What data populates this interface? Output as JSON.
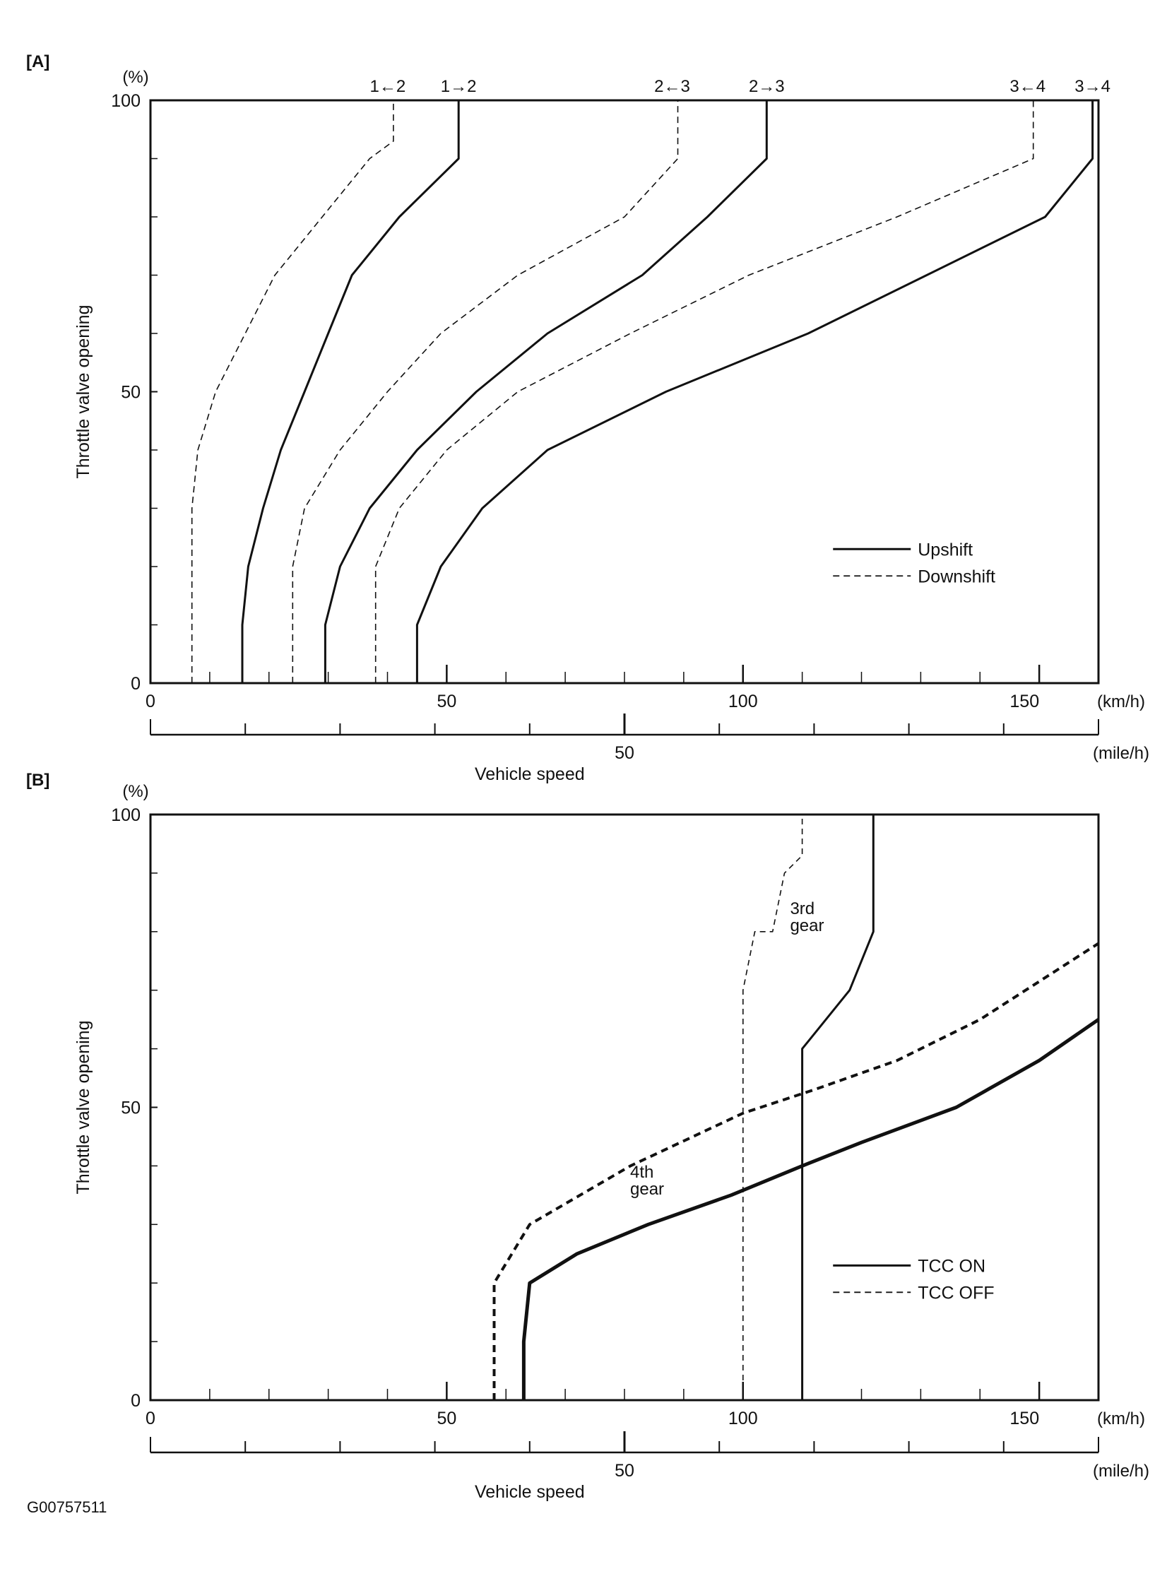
{
  "footer_code": "G00757511",
  "chart_data": [
    {
      "panel": "[A]",
      "type": "line",
      "y_unit": "(%)",
      "ylabel": "Throttle valve opening",
      "xlabel": "Vehicle speed",
      "x_unit": "(km/h)",
      "x2_unit": "(mile/h)",
      "xlim": [
        0,
        160
      ],
      "ylim": [
        0,
        100
      ],
      "x_ticks": [
        0,
        50,
        100,
        150
      ],
      "y_ticks": [
        0,
        50,
        100
      ],
      "x2_ticks": [
        50
      ],
      "x2_limit_mph": 100,
      "legend": [
        {
          "label": "Upshift",
          "style": "solid"
        },
        {
          "label": "Downshift",
          "style": "dashed"
        }
      ],
      "legend_position": "lower-right",
      "series": [
        {
          "label": "1→2",
          "style": "solid",
          "points": [
            [
              15.5,
              0
            ],
            [
              15.5,
              10
            ],
            [
              16.5,
              20
            ],
            [
              19,
              30
            ],
            [
              22,
              40
            ],
            [
              26,
              50
            ],
            [
              30,
              60
            ],
            [
              34,
              70
            ],
            [
              42,
              80
            ],
            [
              52,
              90
            ],
            [
              52,
              100
            ]
          ]
        },
        {
          "label": "1←2",
          "style": "dashed",
          "points": [
            [
              7,
              0
            ],
            [
              7,
              30
            ],
            [
              8,
              40
            ],
            [
              11,
              50
            ],
            [
              16,
              60
            ],
            [
              21,
              70
            ],
            [
              29,
              80
            ],
            [
              37,
              90
            ],
            [
              41,
              93
            ],
            [
              41,
              100
            ]
          ]
        },
        {
          "label": "2→3",
          "style": "solid",
          "points": [
            [
              29.5,
              0
            ],
            [
              29.5,
              10
            ],
            [
              32,
              20
            ],
            [
              37,
              30
            ],
            [
              45,
              40
            ],
            [
              55,
              50
            ],
            [
              67,
              60
            ],
            [
              83,
              70
            ],
            [
              94,
              80
            ],
            [
              104,
              90
            ],
            [
              104,
              100
            ]
          ]
        },
        {
          "label": "2←3",
          "style": "dashed",
          "points": [
            [
              24,
              0
            ],
            [
              24,
              20
            ],
            [
              26,
              30
            ],
            [
              32,
              40
            ],
            [
              40,
              50
            ],
            [
              49,
              60
            ],
            [
              62,
              70
            ],
            [
              80,
              80
            ],
            [
              89,
              90
            ],
            [
              89,
              100
            ]
          ]
        },
        {
          "label": "3→4",
          "style": "solid",
          "points": [
            [
              45,
              0
            ],
            [
              45,
              10
            ],
            [
              49,
              20
            ],
            [
              56,
              30
            ],
            [
              67,
              40
            ],
            [
              87,
              50
            ],
            [
              111,
              60
            ],
            [
              131,
              70
            ],
            [
              151,
              80
            ],
            [
              159,
              90
            ],
            [
              159,
              100
            ]
          ]
        },
        {
          "label": "3←4",
          "style": "dashed",
          "points": [
            [
              38,
              0
            ],
            [
              38,
              20
            ],
            [
              42,
              30
            ],
            [
              50,
              40
            ],
            [
              62,
              50
            ],
            [
              81,
              60
            ],
            [
              101,
              70
            ],
            [
              126,
              80
            ],
            [
              149,
              90
            ],
            [
              149,
              100
            ]
          ]
        }
      ],
      "top_labels": [
        "1←2",
        "1→2",
        "2←3",
        "2→3",
        "3←4",
        "3→4"
      ]
    },
    {
      "panel": "[B]",
      "type": "line",
      "y_unit": "(%)",
      "ylabel": "Throttle valve opening",
      "xlabel": "Vehicle speed",
      "x_unit": "(km/h)",
      "x2_unit": "(mile/h)",
      "xlim": [
        0,
        160
      ],
      "ylim": [
        0,
        100
      ],
      "x_ticks": [
        0,
        50,
        100,
        150
      ],
      "y_ticks": [
        0,
        50,
        100
      ],
      "x2_ticks": [
        50
      ],
      "x2_limit_mph": 100,
      "legend": [
        {
          "label": "TCC ON",
          "style": "solid"
        },
        {
          "label": "TCC OFF",
          "style": "dashed"
        }
      ],
      "legend_position": "lower-right",
      "series": [
        {
          "group": "3rd gear",
          "tcc": "ON",
          "style": "solid",
          "points": [
            [
              110,
              0
            ],
            [
              110,
              60
            ],
            [
              118,
              70
            ],
            [
              122,
              80
            ],
            [
              122,
              100
            ]
          ]
        },
        {
          "group": "3rd gear",
          "tcc": "OFF",
          "style": "dashed-thin",
          "points": [
            [
              100,
              0
            ],
            [
              100,
              70
            ],
            [
              102,
              80
            ],
            [
              105,
              80
            ],
            [
              107,
              90
            ],
            [
              110,
              93
            ],
            [
              110,
              100
            ]
          ]
        },
        {
          "group": "4th gear",
          "tcc": "ON",
          "style": "solid-bold",
          "points": [
            [
              63,
              0
            ],
            [
              63,
              10
            ],
            [
              64,
              20
            ],
            [
              72,
              25
            ],
            [
              84,
              30
            ],
            [
              98,
              35
            ],
            [
              110,
              40
            ],
            [
              120,
              44
            ],
            [
              136,
              50
            ],
            [
              150,
              58
            ],
            [
              160,
              65
            ]
          ]
        },
        {
          "group": "4th gear",
          "tcc": "OFF",
          "style": "dashed-bold",
          "points": [
            [
              58,
              0
            ],
            [
              58,
              20
            ],
            [
              64,
              30
            ],
            [
              81,
              40
            ],
            [
              100,
              49
            ],
            [
              112,
              53
            ],
            [
              126,
              58
            ],
            [
              140,
              65
            ],
            [
              160,
              78
            ]
          ]
        }
      ],
      "annotations": [
        {
          "text_lines": [
            "3rd",
            "gear"
          ],
          "at": [
            107,
            83
          ]
        },
        {
          "text_lines": [
            "4th",
            "gear"
          ],
          "at": [
            80,
            38
          ]
        }
      ]
    }
  ]
}
